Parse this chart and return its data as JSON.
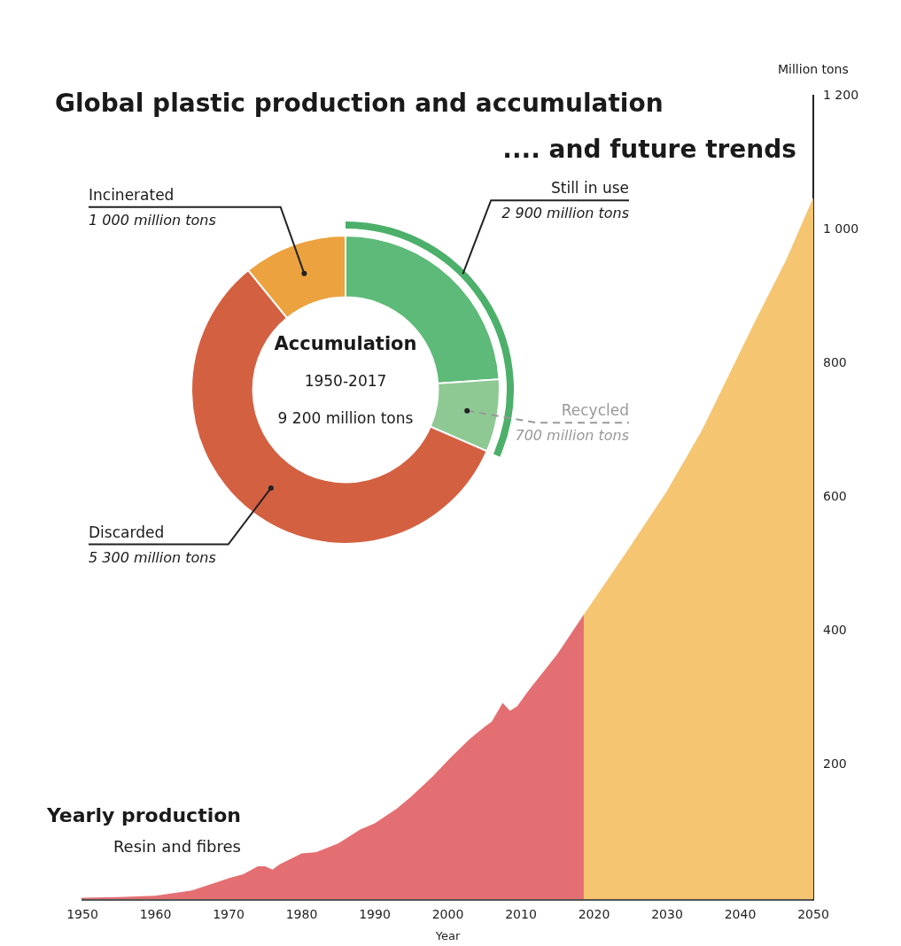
{
  "chart_data": [
    {
      "type": "area",
      "title": "Global plastic production and accumulation",
      "subtitle": ".... and future trends",
      "xlabel": "Year",
      "ylabel": "Million tons",
      "annotations": [
        "Yearly production",
        "Resin and fibres"
      ],
      "xlim": [
        1950,
        2050
      ],
      "xticks": [
        1950,
        1960,
        1970,
        1980,
        1990,
        2000,
        2010,
        2020,
        2030,
        2040,
        2050
      ],
      "ylim": [
        0,
        1200
      ],
      "yticks": [
        200,
        400,
        600,
        800,
        {
          "value": 1000,
          "label": "1 000"
        },
        {
          "value": 1200,
          "label": "1 200"
        }
      ],
      "series": [
        {
          "color": "#e46f73",
          "x": [
            1950,
            1955,
            1960,
            1965,
            1970,
            1972,
            1974,
            1975,
            1976,
            1977,
            1980,
            1982,
            1985,
            1988,
            1990,
            1993,
            1995,
            1998,
            2000,
            2001,
            2003,
            2005,
            2006,
            2007.5,
            2008.5,
            2009.5,
            2011,
            2015,
            2018.6
          ],
          "values": [
            2,
            3,
            5,
            13,
            31,
            37,
            49,
            49,
            44,
            52,
            68,
            70,
            83,
            104,
            113,
            135,
            153,
            184,
            207,
            218,
            239,
            257,
            265,
            293,
            281,
            288,
            311,
            366,
            425
          ]
        },
        {
          "color": "#f5c572",
          "x": [
            2018.6,
            2024.6,
            2030,
            2034.7,
            2041.9,
            2046.3,
            2050
          ],
          "values": [
            425,
            521,
            610,
            699,
            860,
            955,
            1048
          ]
        }
      ]
    },
    {
      "type": "donut",
      "categories": [
        null,
        "Recycled",
        "Discarded",
        "Incinerated"
      ],
      "values": [
        2200,
        700,
        5300,
        1000
      ],
      "colors": [
        "#5dba78",
        "#8ec994",
        "#d46042",
        "#eba23f"
      ],
      "value_labels": [
        null,
        "700 million tons",
        "5 300 million tons",
        "1 000 million tons"
      ],
      "annotations": [
        "Accumulation",
        "1950-2017",
        "9 200 million tons",
        "Still in use",
        "2 900 million tons"
      ]
    }
  ]
}
